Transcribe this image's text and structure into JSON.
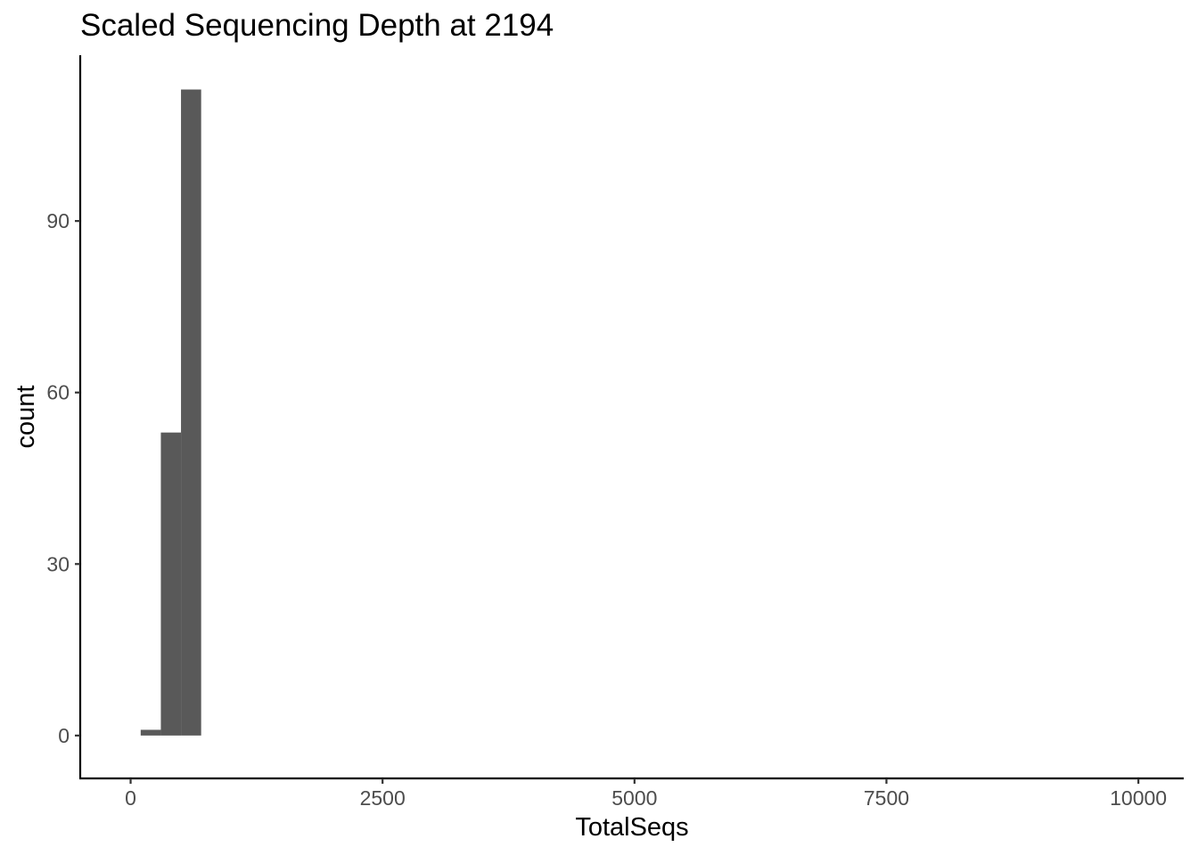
{
  "chart_data": {
    "type": "bar",
    "title": "Scaled Sequencing Depth at 2194",
    "xlabel": "TotalSeqs",
    "ylabel": "count",
    "xlim": [
      -500,
      10450
    ],
    "ylim": [
      -7.5,
      119
    ],
    "x_ticks": [
      0,
      2500,
      5000,
      7500,
      10000
    ],
    "x_tick_labels": [
      "0",
      "2500",
      "5000",
      "7500",
      "10000"
    ],
    "y_ticks": [
      0,
      30,
      60,
      90
    ],
    "y_tick_labels": [
      "0",
      "30",
      "60",
      "90"
    ],
    "bin_width": 200,
    "bins": [
      {
        "x_start": 100,
        "x_end": 300,
        "count": 1
      },
      {
        "x_start": 300,
        "x_end": 500,
        "count": 53
      },
      {
        "x_start": 500,
        "x_end": 700,
        "count": 113
      }
    ],
    "bar_color": "#595959",
    "grid": false,
    "legend": "none"
  }
}
